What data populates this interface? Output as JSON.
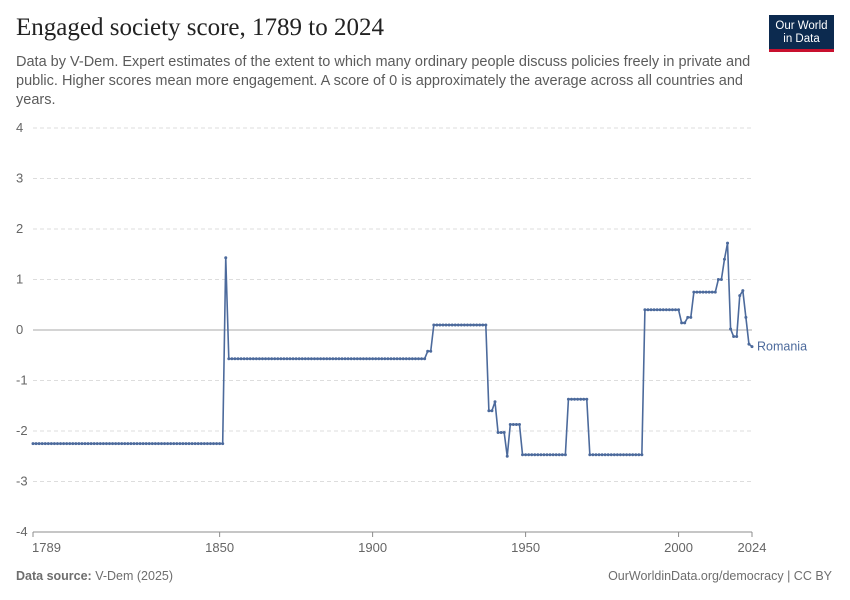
{
  "header": {
    "title": "Engaged society score, 1789 to 2024",
    "subtitle": "Data by V-Dem. Expert estimates of the extent to which many ordinary people discuss policies freely in private and public. Higher scores mean more engagement. A score of 0 is approximately the average across all countries and years."
  },
  "logo": {
    "line1": "Our World",
    "line2": "in Data"
  },
  "footer": {
    "source_label": "Data source:",
    "source_value": "V-Dem (2025)",
    "right": "OurWorldinData.org/democracy | CC BY"
  },
  "colors": {
    "series": "#4c6a9c",
    "grid": "#dddddd",
    "zero_line": "#a8a8a8",
    "text": "#5b5b5b"
  },
  "chart_data": {
    "type": "line",
    "title": "Engaged society score, 1789 to 2024",
    "xlabel": "",
    "ylabel": "",
    "xlim": [
      1789,
      2024
    ],
    "ylim": [
      -4,
      4
    ],
    "x_ticks": [
      1789,
      1850,
      1900,
      1950,
      2000,
      2024
    ],
    "y_ticks": [
      -4,
      -3,
      -2,
      -1,
      0,
      1,
      2,
      3,
      4
    ],
    "grid": true,
    "legend": "end-of-line label",
    "series": [
      {
        "name": "Romania",
        "points": [
          [
            1789,
            -2.25
          ],
          [
            1851,
            -2.25
          ],
          [
            1852,
            1.43
          ],
          [
            1853,
            -0.57
          ],
          [
            1917,
            -0.57
          ],
          [
            1918,
            -0.42
          ],
          [
            1919,
            -0.42
          ],
          [
            1920,
            0.1
          ],
          [
            1937,
            0.1
          ],
          [
            1938,
            -1.6
          ],
          [
            1939,
            -1.6
          ],
          [
            1940,
            -1.42
          ],
          [
            1941,
            -2.03
          ],
          [
            1943,
            -2.03
          ],
          [
            1944,
            -2.5
          ],
          [
            1945,
            -1.87
          ],
          [
            1948,
            -1.87
          ],
          [
            1949,
            -2.47
          ],
          [
            1963,
            -2.47
          ],
          [
            1964,
            -1.37
          ],
          [
            1970,
            -1.37
          ],
          [
            1971,
            -2.47
          ],
          [
            1988,
            -2.47
          ],
          [
            1989,
            0.4
          ],
          [
            2000,
            0.4
          ],
          [
            2001,
            0.14
          ],
          [
            2002,
            0.14
          ],
          [
            2003,
            0.25
          ],
          [
            2004,
            0.25
          ],
          [
            2005,
            0.75
          ],
          [
            2012,
            0.75
          ],
          [
            2013,
            1.0
          ],
          [
            2014,
            1.0
          ],
          [
            2015,
            1.4
          ],
          [
            2016,
            1.72
          ],
          [
            2017,
            0.02
          ],
          [
            2018,
            -0.13
          ],
          [
            2019,
            -0.13
          ],
          [
            2020,
            0.68
          ],
          [
            2021,
            0.78
          ],
          [
            2022,
            0.25
          ],
          [
            2023,
            -0.28
          ],
          [
            2024,
            -0.33
          ]
        ]
      }
    ]
  }
}
